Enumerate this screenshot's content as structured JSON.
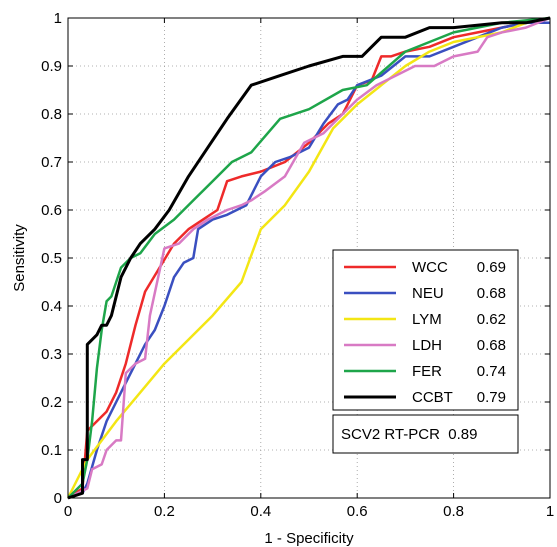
{
  "chart_data": {
    "type": "line",
    "title": "",
    "xlabel": "1 - Specificity",
    "ylabel": "Sensitivity",
    "xlim": [
      0,
      1
    ],
    "ylim": [
      0,
      1
    ],
    "xticks": [
      0,
      0.2,
      0.4,
      0.6,
      0.8,
      1
    ],
    "yticks": [
      0,
      0.1,
      0.2,
      0.3,
      0.4,
      0.5,
      0.6,
      0.7,
      0.8,
      0.9,
      1
    ],
    "xtick_labels": [
      "0",
      "0.2",
      "0.4",
      "0.6",
      "0.8",
      "1"
    ],
    "ytick_labels": [
      "0",
      "0.1",
      "0.2",
      "0.3",
      "0.4",
      "0.5",
      "0.6",
      "0.7",
      "0.8",
      "0.9",
      "1"
    ],
    "grid": true,
    "legend_position": "lower-right",
    "annotation": "SCV2 RT-PCR  0.89",
    "series": [
      {
        "name": "WCC",
        "auc": "0.69",
        "color": "#ee2a2a",
        "x": [
          0,
          0.03,
          0.04,
          0.05,
          0.08,
          0.1,
          0.12,
          0.14,
          0.16,
          0.19,
          0.22,
          0.25,
          0.28,
          0.31,
          0.33,
          0.36,
          0.4,
          0.45,
          0.5,
          0.54,
          0.57,
          0.58,
          0.6,
          0.63,
          0.65,
          0.67,
          0.7,
          0.75,
          0.8,
          0.85,
          0.9,
          0.95,
          1
        ],
        "y": [
          0,
          0.02,
          0.14,
          0.15,
          0.18,
          0.22,
          0.28,
          0.36,
          0.43,
          0.48,
          0.53,
          0.56,
          0.58,
          0.6,
          0.66,
          0.67,
          0.68,
          0.7,
          0.74,
          0.78,
          0.8,
          0.82,
          0.86,
          0.87,
          0.92,
          0.92,
          0.93,
          0.94,
          0.96,
          0.97,
          0.98,
          0.99,
          1
        ]
      },
      {
        "name": "NEU",
        "auc": "0.68",
        "color": "#3a4fc0",
        "x": [
          0,
          0.03,
          0.04,
          0.06,
          0.08,
          0.1,
          0.12,
          0.14,
          0.16,
          0.18,
          0.2,
          0.22,
          0.24,
          0.26,
          0.27,
          0.3,
          0.33,
          0.37,
          0.4,
          0.43,
          0.46,
          0.5,
          0.53,
          0.56,
          0.58,
          0.6,
          0.65,
          0.7,
          0.75,
          0.8,
          0.85,
          0.9,
          0.95,
          1
        ],
        "y": [
          0,
          0.01,
          0.03,
          0.1,
          0.16,
          0.2,
          0.24,
          0.28,
          0.32,
          0.35,
          0.4,
          0.46,
          0.49,
          0.5,
          0.56,
          0.58,
          0.59,
          0.61,
          0.67,
          0.7,
          0.71,
          0.73,
          0.78,
          0.82,
          0.83,
          0.86,
          0.88,
          0.92,
          0.92,
          0.94,
          0.96,
          0.98,
          0.99,
          0.99
        ]
      },
      {
        "name": "LYM",
        "auc": "0.62",
        "color": "#f3e614",
        "x": [
          0,
          0.04,
          0.1,
          0.2,
          0.3,
          0.36,
          0.4,
          0.45,
          0.5,
          0.55,
          0.6,
          0.65,
          0.7,
          0.75,
          0.8,
          0.85,
          0.9,
          0.95,
          1
        ],
        "y": [
          0,
          0.08,
          0.16,
          0.28,
          0.38,
          0.45,
          0.56,
          0.61,
          0.68,
          0.77,
          0.82,
          0.86,
          0.9,
          0.93,
          0.95,
          0.96,
          0.97,
          0.99,
          1
        ]
      },
      {
        "name": "LDH",
        "auc": "0.68",
        "color": "#d87ac4",
        "x": [
          0,
          0.04,
          0.05,
          0.07,
          0.08,
          0.1,
          0.11,
          0.12,
          0.14,
          0.16,
          0.17,
          0.2,
          0.23,
          0.26,
          0.29,
          0.33,
          0.36,
          0.38,
          0.41,
          0.45,
          0.49,
          0.53,
          0.57,
          0.6,
          0.64,
          0.68,
          0.72,
          0.76,
          0.8,
          0.85,
          0.87,
          0.9,
          0.95,
          1
        ],
        "y": [
          0,
          0.02,
          0.06,
          0.07,
          0.1,
          0.12,
          0.12,
          0.26,
          0.28,
          0.29,
          0.38,
          0.52,
          0.53,
          0.56,
          0.58,
          0.6,
          0.61,
          0.62,
          0.64,
          0.67,
          0.74,
          0.76,
          0.8,
          0.83,
          0.86,
          0.88,
          0.9,
          0.9,
          0.92,
          0.93,
          0.96,
          0.97,
          0.98,
          1
        ]
      },
      {
        "name": "FER",
        "auc": "0.74",
        "color": "#1ea54a",
        "x": [
          0,
          0.03,
          0.04,
          0.05,
          0.06,
          0.07,
          0.08,
          0.09,
          0.1,
          0.11,
          0.13,
          0.15,
          0.18,
          0.22,
          0.26,
          0.3,
          0.34,
          0.38,
          0.44,
          0.5,
          0.57,
          0.62,
          0.7,
          0.8,
          0.9,
          1
        ],
        "y": [
          0,
          0.03,
          0.08,
          0.16,
          0.27,
          0.35,
          0.41,
          0.42,
          0.45,
          0.48,
          0.5,
          0.51,
          0.55,
          0.58,
          0.62,
          0.66,
          0.7,
          0.72,
          0.79,
          0.81,
          0.85,
          0.86,
          0.93,
          0.97,
          0.99,
          1
        ]
      },
      {
        "name": "CCBT",
        "auc": "0.79",
        "color": "#000000",
        "x": [
          0,
          0.03,
          0.03,
          0.04,
          0.04,
          0.06,
          0.07,
          0.08,
          0.09,
          0.1,
          0.11,
          0.13,
          0.15,
          0.18,
          0.21,
          0.25,
          0.29,
          0.33,
          0.38,
          0.44,
          0.5,
          0.57,
          0.61,
          0.65,
          0.7,
          0.75,
          0.8,
          0.9,
          0.95,
          1
        ],
        "y": [
          0,
          0.01,
          0.08,
          0.08,
          0.32,
          0.34,
          0.36,
          0.36,
          0.38,
          0.42,
          0.46,
          0.5,
          0.53,
          0.56,
          0.6,
          0.67,
          0.73,
          0.79,
          0.86,
          0.88,
          0.9,
          0.92,
          0.92,
          0.96,
          0.96,
          0.98,
          0.98,
          0.99,
          0.99,
          1
        ]
      }
    ]
  }
}
